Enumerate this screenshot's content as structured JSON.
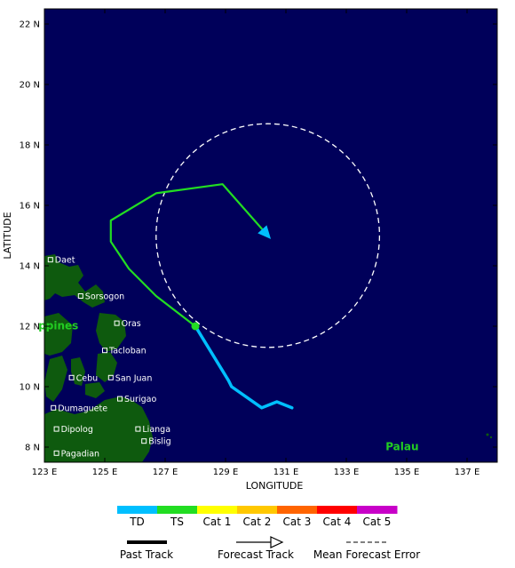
{
  "axes": {
    "xlabel": "LONGITUDE",
    "ylabel": "LATITUDE",
    "xlim": [
      123,
      138
    ],
    "ylim": [
      7.5,
      22.5
    ],
    "x_ticks": [
      {
        "value": 123,
        "label": "123 E"
      },
      {
        "value": 125,
        "label": "125 E"
      },
      {
        "value": 127,
        "label": "127 E"
      },
      {
        "value": 129,
        "label": "129 E"
      },
      {
        "value": 131,
        "label": "131 E"
      },
      {
        "value": 133,
        "label": "133 E"
      },
      {
        "value": 135,
        "label": "135 E"
      },
      {
        "value": 137,
        "label": "137 E"
      }
    ],
    "y_ticks": [
      {
        "value": 8,
        "label": "8 N"
      },
      {
        "value": 10,
        "label": "10 N"
      },
      {
        "value": 12,
        "label": "12 N"
      },
      {
        "value": 14,
        "label": "14 N"
      },
      {
        "value": 16,
        "label": "16 N"
      },
      {
        "value": 18,
        "label": "18 N"
      },
      {
        "value": 20,
        "label": "20 N"
      },
      {
        "value": 22,
        "label": "22 N"
      }
    ]
  },
  "colors": {
    "ocean": "#00005a",
    "land": "#0e5a0e",
    "td": "#00bfff",
    "ts": "#22dd22",
    "cat1": "#ffff00",
    "cat2": "#ffc800",
    "cat3": "#ff6400",
    "cat4": "#ff0000",
    "cat5": "#c800c8",
    "error_circle": "#ffffff",
    "region_label": "#22cc22"
  },
  "places": [
    {
      "name": "Daet",
      "lon": 123.2,
      "lat": 14.2
    },
    {
      "name": "Sorsogon",
      "lon": 124.2,
      "lat": 13.0
    },
    {
      "name": "Oras",
      "lon": 125.4,
      "lat": 12.1
    },
    {
      "name": "Tacloban",
      "lon": 125.0,
      "lat": 11.2
    },
    {
      "name": "Cebu",
      "lon": 123.9,
      "lat": 10.3
    },
    {
      "name": "San Juan",
      "lon": 125.2,
      "lat": 10.3
    },
    {
      "name": "Surigao",
      "lon": 125.5,
      "lat": 9.6
    },
    {
      "name": "Dumaguete",
      "lon": 123.3,
      "lat": 9.3
    },
    {
      "name": "Dipolog",
      "lon": 123.4,
      "lat": 8.6
    },
    {
      "name": "Lianga",
      "lon": 126.1,
      "lat": 8.6
    },
    {
      "name": "Bislig",
      "lon": 126.3,
      "lat": 8.2
    },
    {
      "name": "Pagadian",
      "lon": 123.4,
      "lat": 7.8
    }
  ],
  "region_labels": [
    {
      "name": "ppines",
      "lon": 122.8,
      "lat": 11.9
    },
    {
      "name": "Palau",
      "lon": 134.3,
      "lat": 7.9
    }
  ],
  "chart_data": {
    "type": "map-track",
    "past_track_td": [
      [
        131.2,
        9.3
      ],
      [
        130.7,
        9.5
      ],
      [
        130.2,
        9.3
      ],
      [
        129.2,
        10.0
      ],
      [
        129.1,
        10.2
      ],
      [
        128.0,
        12.0
      ]
    ],
    "forecast_track_ts": [
      [
        128.0,
        12.0
      ],
      [
        126.7,
        13.0
      ],
      [
        125.8,
        13.9
      ],
      [
        125.2,
        14.8
      ],
      [
        125.2,
        15.5
      ],
      [
        126.7,
        16.4
      ],
      [
        128.9,
        16.7
      ],
      [
        130.4,
        15.0
      ]
    ],
    "current_position": [
      128.0,
      12.0
    ],
    "forecast_end_arrow": [
      130.4,
      15.0
    ],
    "mean_forecast_error_circle": {
      "center": [
        130.4,
        15.0
      ],
      "radius_deg": 3.7
    }
  },
  "legend": {
    "intensity": [
      {
        "label": "TD",
        "color_key": "td"
      },
      {
        "label": "TS",
        "color_key": "ts"
      },
      {
        "label": "Cat 1",
        "color_key": "cat1"
      },
      {
        "label": "Cat 2",
        "color_key": "cat2"
      },
      {
        "label": "Cat 3",
        "color_key": "cat3"
      },
      {
        "label": "Cat 4",
        "color_key": "cat4"
      },
      {
        "label": "Cat 5",
        "color_key": "cat5"
      }
    ],
    "track_types": {
      "past": "Past Track",
      "forecast": "Forecast Track",
      "error": "Mean Forecast Error"
    }
  }
}
